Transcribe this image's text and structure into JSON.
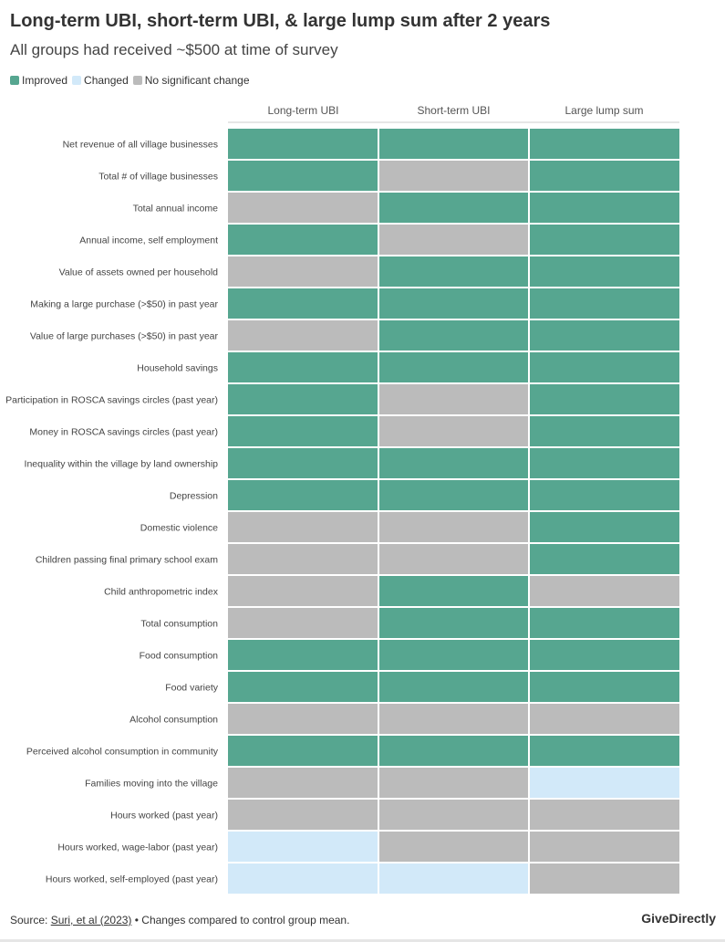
{
  "header": {
    "title": "Long-term UBI, short-term UBI, & large lump sum after 2 years",
    "subtitle": "All groups had received ~$500 at time of survey"
  },
  "legend": [
    {
      "key": "I",
      "label": "Improved",
      "color": "#56a690"
    },
    {
      "key": "C",
      "label": "Changed",
      "color": "#d2e9f9"
    },
    {
      "key": "N",
      "label": "No significant change",
      "color": "#bbbbbb"
    }
  ],
  "chart_data": {
    "type": "heatmap",
    "title": "Long-term UBI, short-term UBI, & large lump sum after 2 years",
    "subtitle": "All groups had received ~$500 at time of survey",
    "columns": [
      "Long-term UBI",
      "Short-term UBI",
      "Large lump sum"
    ],
    "rows": [
      "Net revenue of all village businesses",
      "Total # of village businesses",
      "Total annual income",
      "Annual income, self employment",
      "Value of assets owned per household",
      "Making a large purchase (>$50) in past year",
      "Value of large purchases (>$50) in past year",
      "Household savings",
      "Participation in ROSCA savings circles (past year)",
      "Money in ROSCA savings circles (past year)",
      "Inequality within the village by land ownership",
      "Depression",
      "Domestic violence",
      "Children passing final primary school exam",
      "Child anthropometric index",
      "Total consumption",
      "Food consumption",
      "Food variety",
      "Alcohol consumption",
      "Perceived alcohol consumption in community",
      "Families moving into the village",
      "Hours worked (past year)",
      "Hours worked, wage-labor (past year)",
      "Hours worked, self-employed (past year)"
    ],
    "values": [
      [
        "I",
        "I",
        "I"
      ],
      [
        "I",
        "N",
        "I"
      ],
      [
        "N",
        "I",
        "I"
      ],
      [
        "I",
        "N",
        "I"
      ],
      [
        "N",
        "I",
        "I"
      ],
      [
        "I",
        "I",
        "I"
      ],
      [
        "N",
        "I",
        "I"
      ],
      [
        "I",
        "I",
        "I"
      ],
      [
        "I",
        "N",
        "I"
      ],
      [
        "I",
        "N",
        "I"
      ],
      [
        "I",
        "I",
        "I"
      ],
      [
        "I",
        "I",
        "I"
      ],
      [
        "N",
        "N",
        "I"
      ],
      [
        "N",
        "N",
        "I"
      ],
      [
        "N",
        "I",
        "N"
      ],
      [
        "N",
        "I",
        "I"
      ],
      [
        "I",
        "I",
        "I"
      ],
      [
        "I",
        "I",
        "I"
      ],
      [
        "N",
        "N",
        "N"
      ],
      [
        "I",
        "I",
        "I"
      ],
      [
        "N",
        "N",
        "C"
      ],
      [
        "N",
        "N",
        "N"
      ],
      [
        "C",
        "N",
        "N"
      ],
      [
        "C",
        "C",
        "N"
      ]
    ],
    "legend_position": "top-left"
  },
  "footer": {
    "source_prefix": "Source: ",
    "source_link": "Suri, et al (2023)",
    "source_suffix": " • Changes compared to control group mean.",
    "brand": "GiveDirectly"
  }
}
